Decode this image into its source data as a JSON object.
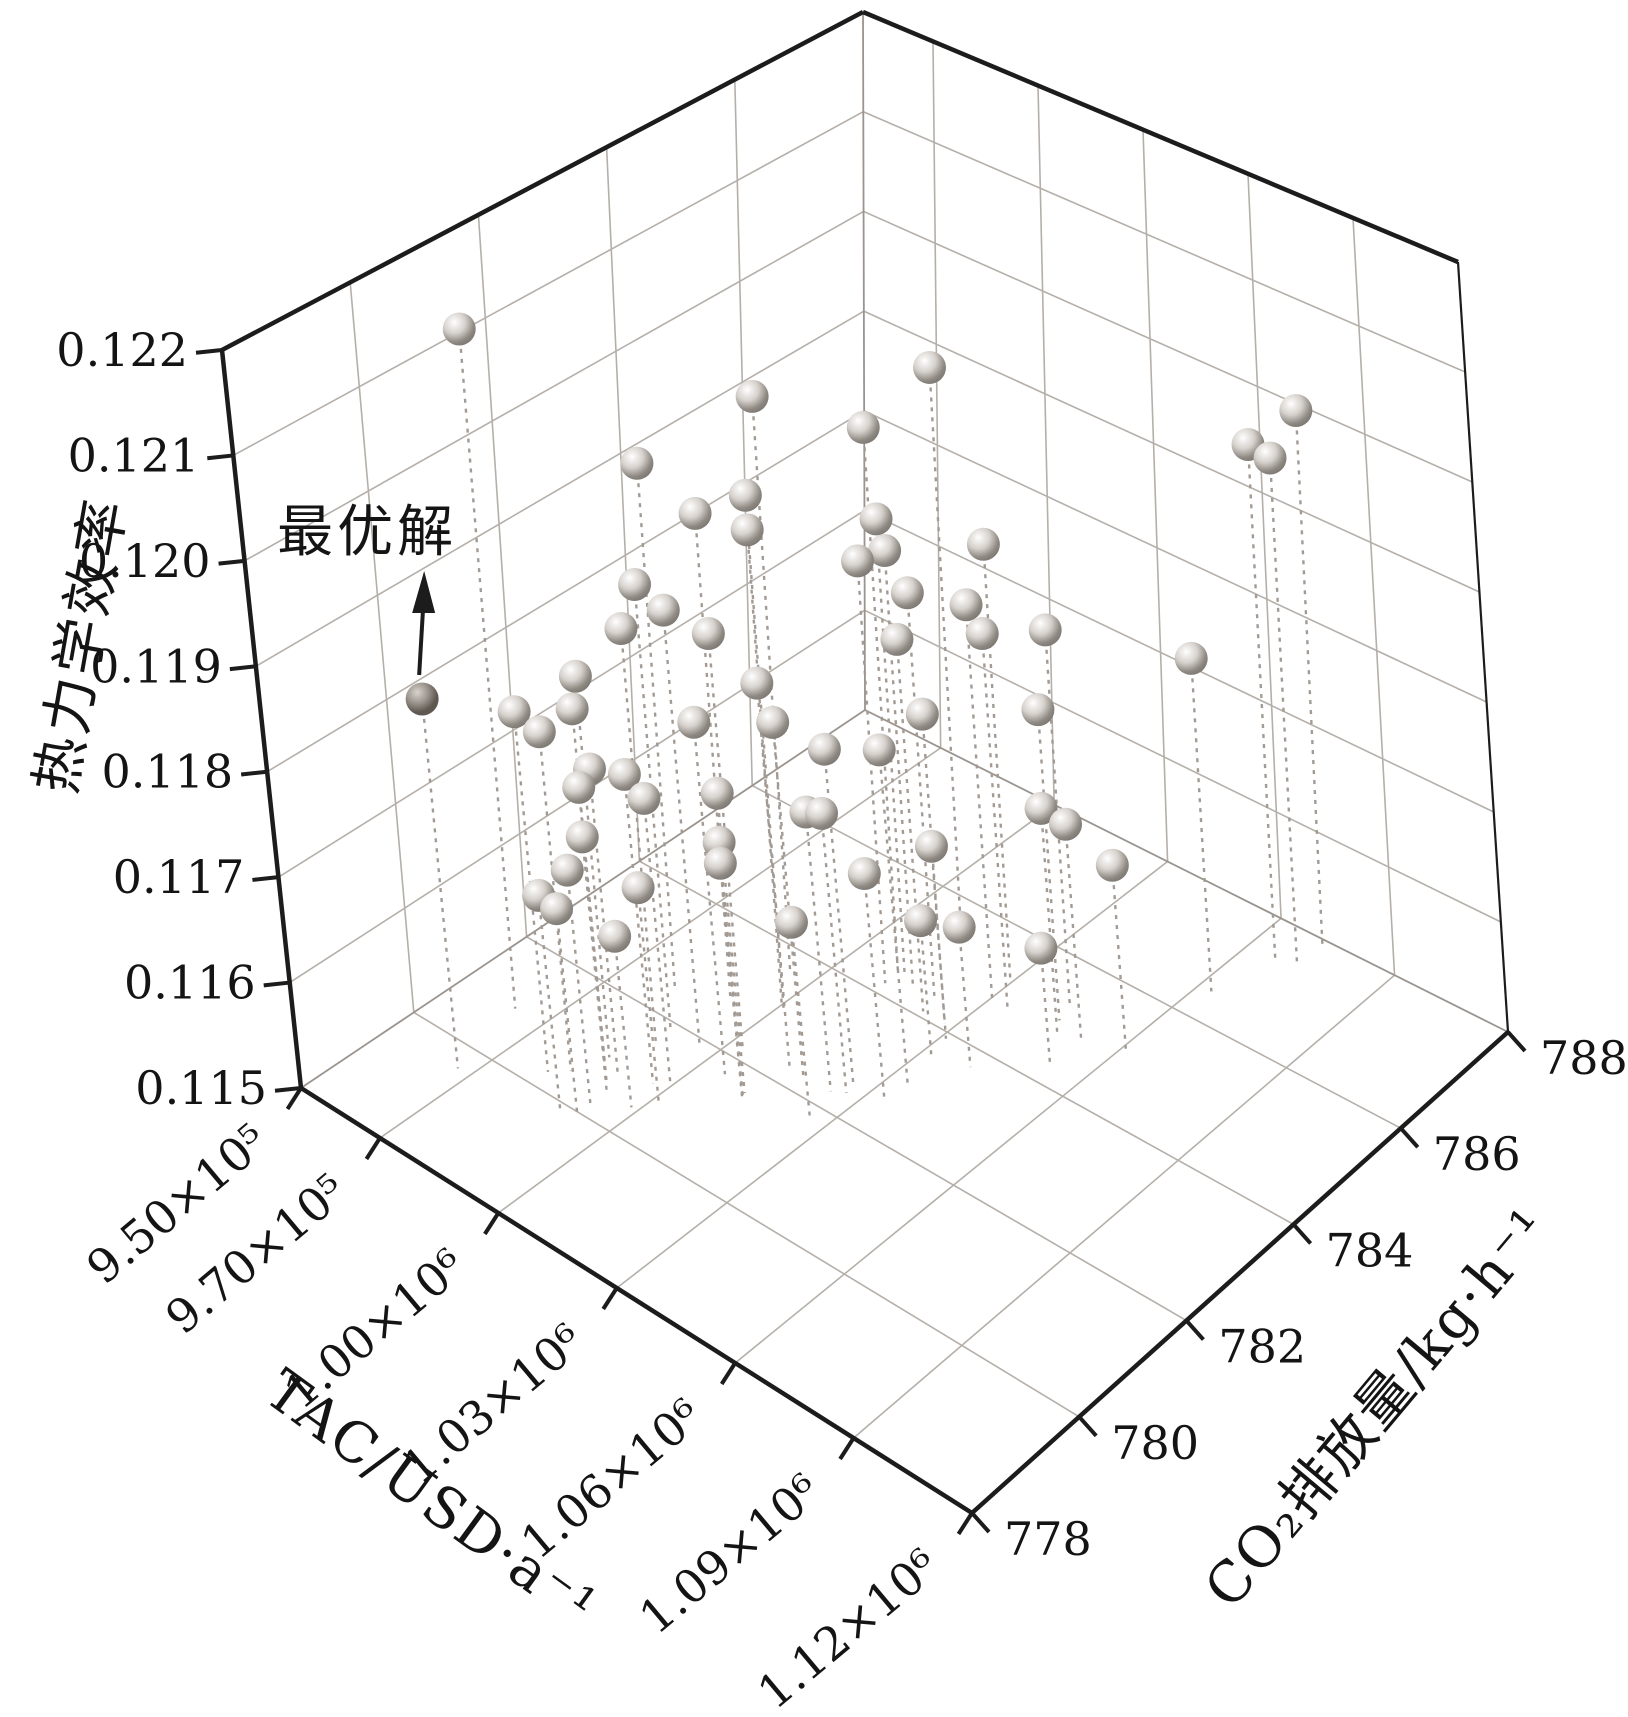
{
  "chart_data": {
    "type": "scatter",
    "subtype": "scatter3d",
    "title": "",
    "annotation": {
      "text": "最优解"
    },
    "axes": {
      "x": {
        "label": "TAC/USD·a⁻¹",
        "range": [
          950000,
          1120000
        ],
        "tick_values": [
          950000,
          970000,
          1000000,
          1030000,
          1060000,
          1090000,
          1120000
        ],
        "tick_labels": [
          "9.50×10⁵",
          "9.70×10⁵",
          "1.00×10⁶",
          "1.03×10⁶",
          "1.06×10⁶",
          "1.09×10⁶",
          "1.12×10⁶"
        ]
      },
      "y": {
        "label": "CO₂排放量/kg·h⁻¹",
        "range": [
          778,
          788
        ],
        "tick_values": [
          778,
          780,
          782,
          784,
          786,
          788
        ],
        "tick_labels": [
          "778",
          "780",
          "782",
          "784",
          "786",
          "788"
        ]
      },
      "z": {
        "label": "热力学效率",
        "range": [
          0.115,
          0.122
        ],
        "tick_values": [
          0.115,
          0.116,
          0.117,
          0.118,
          0.119,
          0.12,
          0.121,
          0.122
        ],
        "tick_labels": [
          "0.115",
          "0.116",
          "0.117",
          "0.118",
          "0.119",
          "0.120",
          "0.121",
          "0.122"
        ]
      }
    },
    "grid": true,
    "legend": "none",
    "optimal_point": {
      "tac": 967000,
      "co2": 779.6,
      "eff": 0.1185
    },
    "points": [
      {
        "tac": 963000,
        "co2": 780.9,
        "eff": 0.1215
      },
      {
        "tac": 995000,
        "co2": 783.6,
        "eff": 0.1205
      },
      {
        "tac": 981000,
        "co2": 782.5,
        "eff": 0.12
      },
      {
        "tac": 991000,
        "co2": 782.8,
        "eff": 0.1196
      },
      {
        "tac": 1002000,
        "co2": 783.0,
        "eff": 0.1199
      },
      {
        "tac": 1000000,
        "co2": 783.1,
        "eff": 0.1195
      },
      {
        "tac": 988500,
        "co2": 781.9,
        "eff": 0.1192
      },
      {
        "tac": 989000,
        "co2": 781.6,
        "eff": 0.1189
      },
      {
        "tac": 996000,
        "co2": 781.9,
        "eff": 0.1191
      },
      {
        "tac": 1002800,
        "co2": 782.2,
        "eff": 0.1189
      },
      {
        "tac": 985700,
        "co2": 781.0,
        "eff": 0.1186
      },
      {
        "tac": 980000,
        "co2": 780.3,
        "eff": 0.1184
      },
      {
        "tac": 983000,
        "co2": 780.5,
        "eff": 0.1182
      },
      {
        "tac": 987500,
        "co2": 780.8,
        "eff": 0.1184
      },
      {
        "tac": 1013500,
        "co2": 782.3,
        "eff": 0.1186
      },
      {
        "tac": 1005400,
        "co2": 781.7,
        "eff": 0.1183
      },
      {
        "tac": 1017000,
        "co2": 782.3,
        "eff": 0.1183
      },
      {
        "tac": 990800,
        "co2": 780.8,
        "eff": 0.1179
      },
      {
        "tac": 996900,
        "co2": 781.0,
        "eff": 0.1179
      },
      {
        "tac": 990800,
        "co2": 780.6,
        "eff": 0.1178
      },
      {
        "tac": 1000000,
        "co2": 781.1,
        "eff": 0.1177
      },
      {
        "tac": 1011900,
        "co2": 781.6,
        "eff": 0.1178
      },
      {
        "tac": 1025600,
        "co2": 782.6,
        "eff": 0.1181
      },
      {
        "tac": 1034000,
        "co2": 783.0,
        "eff": 0.1181
      },
      {
        "tac": 1024100,
        "co2": 782.3,
        "eff": 0.1176
      },
      {
        "tac": 1026700,
        "co2": 782.4,
        "eff": 0.1176
      },
      {
        "tac": 992200,
        "co2": 780.5,
        "eff": 0.1174
      },
      {
        "tac": 1012900,
        "co2": 781.5,
        "eff": 0.1174
      },
      {
        "tac": 1012700,
        "co2": 781.5,
        "eff": 0.1172
      },
      {
        "tac": 992300,
        "co2": 780.2,
        "eff": 0.1172
      },
      {
        "tac": 988800,
        "co2": 779.9,
        "eff": 0.117
      },
      {
        "tac": 991700,
        "co2": 780.0,
        "eff": 0.1169
      },
      {
        "tac": 1001200,
        "co2": 780.8,
        "eff": 0.117
      },
      {
        "tac": 1033700,
        "co2": 782.6,
        "eff": 0.1171
      },
      {
        "tac": 998500,
        "co2": 780.5,
        "eff": 0.1166
      },
      {
        "tac": 1025800,
        "co2": 781.8,
        "eff": 0.1168
      },
      {
        "tac": 1015100,
        "co2": 785.3,
        "eff": 0.1205
      },
      {
        "tac": 1011500,
        "co2": 784.4,
        "eff": 0.1202
      },
      {
        "tac": 1072400,
        "co2": 787.9,
        "eff": 0.12
      },
      {
        "tac": 1067100,
        "co2": 787.4,
        "eff": 0.1198
      },
      {
        "tac": 1071400,
        "co2": 787.5,
        "eff": 0.1197
      },
      {
        "tac": 1011700,
        "co2": 784.5,
        "eff": 0.1193
      },
      {
        "tac": 1011000,
        "co2": 784.2,
        "eff": 0.119
      },
      {
        "tac": 1015300,
        "co2": 784.4,
        "eff": 0.1191
      },
      {
        "tac": 1029200,
        "co2": 785.2,
        "eff": 0.1191
      },
      {
        "tac": 1020900,
        "co2": 784.4,
        "eff": 0.1188
      },
      {
        "tac": 1030200,
        "co2": 784.8,
        "eff": 0.1187
      },
      {
        "tac": 1034200,
        "co2": 784.8,
        "eff": 0.1185
      },
      {
        "tac": 1043300,
        "co2": 785.3,
        "eff": 0.1185
      },
      {
        "tac": 1022300,
        "co2": 784.1,
        "eff": 0.1185
      },
      {
        "tac": 1063200,
        "co2": 786.5,
        "eff": 0.1181
      },
      {
        "tac": 1027900,
        "co2": 784.1,
        "eff": 0.1179
      },
      {
        "tac": 1044900,
        "co2": 785.0,
        "eff": 0.1179
      },
      {
        "tac": 1031100,
        "co2": 783.9,
        "eff": 0.1168
      },
      {
        "tac": 1047200,
        "co2": 784.8,
        "eff": 0.1171
      },
      {
        "tac": 1052000,
        "co2": 784.9,
        "eff": 0.117
      },
      {
        "tac": 1060800,
        "co2": 785.1,
        "eff": 0.1167
      },
      {
        "tac": 1033100,
        "co2": 783.5,
        "eff": 0.1163
      },
      {
        "tac": 1040300,
        "co2": 783.7,
        "eff": 0.1163
      },
      {
        "tac": 1052500,
        "co2": 784.3,
        "eff": 0.1161
      }
    ]
  },
  "colors": {
    "background": "#ffffff",
    "frame": "#1c1c1c",
    "grid": "#b5afa9",
    "light_edge": "#9b948e",
    "drop_line": "#a29a93",
    "sphere_hi": "#ffffff",
    "sphere_mid": "#d6d1cc",
    "sphere_dark": "#8f8983",
    "sphere_edge": "#7d7771",
    "optimal_hi": "#d9d3ce",
    "optimal_mid": "#9a938c",
    "optimal_dark": "#5f5851",
    "text": "#141414"
  }
}
